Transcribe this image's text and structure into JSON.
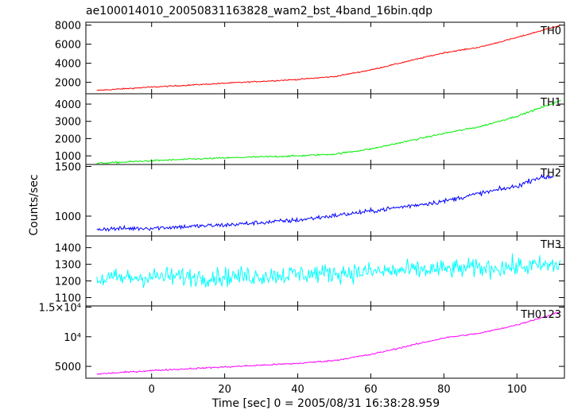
{
  "chart_data": {
    "type": "line",
    "title": "ae100014010_20050831163828_wam2_bst_4band_16bin.qdp",
    "xlabel": "Time [sec] 0 = 2005/08/31 16:38:28.959",
    "ylabel": "Counts/sec",
    "xlim": [
      -18,
      113
    ],
    "x_ticks": [
      0,
      20,
      40,
      60,
      80,
      100
    ],
    "x_tick_labels": [
      "0",
      "20",
      "40",
      "60",
      "80",
      "100"
    ],
    "x_step": 0.25,
    "series": [
      {
        "name": "TH0",
        "color": "#ff0000",
        "ylim": [
          800,
          8300
        ],
        "y_ticks": [
          2000,
          4000,
          6000,
          8000
        ],
        "y_tick_labels": [
          "2000",
          "4000",
          "6000",
          "8000"
        ],
        "control_points": [
          [
            -15,
            1150
          ],
          [
            0,
            1500
          ],
          [
            20,
            1900
          ],
          [
            40,
            2300
          ],
          [
            50,
            2600
          ],
          [
            60,
            3300
          ],
          [
            70,
            4200
          ],
          [
            80,
            5100
          ],
          [
            90,
            5700
          ],
          [
            100,
            6700
          ],
          [
            112,
            8000
          ]
        ],
        "noise": 60
      },
      {
        "name": "TH1",
        "color": "#00ee00",
        "ylim": [
          500,
          4600
        ],
        "y_ticks": [
          1000,
          2000,
          3000,
          4000
        ],
        "y_tick_labels": [
          "1000",
          "2000",
          "3000",
          "4000"
        ],
        "control_points": [
          [
            -15,
            560
          ],
          [
            0,
            720
          ],
          [
            20,
            880
          ],
          [
            40,
            1000
          ],
          [
            50,
            1100
          ],
          [
            60,
            1400
          ],
          [
            70,
            1850
          ],
          [
            80,
            2300
          ],
          [
            90,
            2700
          ],
          [
            100,
            3300
          ],
          [
            112,
            4200
          ]
        ],
        "noise": 45
      },
      {
        "name": "TH2",
        "color": "#0000ff",
        "ylim": [
          800,
          1520
        ],
        "y_ticks": [
          1000,
          1500
        ],
        "y_tick_labels": [
          "1000",
          "1500"
        ],
        "control_points": [
          [
            -15,
            870
          ],
          [
            0,
            880
          ],
          [
            20,
            910
          ],
          [
            40,
            960
          ],
          [
            60,
            1050
          ],
          [
            70,
            1100
          ],
          [
            80,
            1150
          ],
          [
            90,
            1230
          ],
          [
            100,
            1300
          ],
          [
            105,
            1380
          ],
          [
            110,
            1400
          ]
        ],
        "noise": 22
      },
      {
        "name": "TH3",
        "color": "#00ffff",
        "ylim": [
          1050,
          1470
        ],
        "y_ticks": [
          1100,
          1200,
          1300,
          1400
        ],
        "y_tick_labels": [
          "1100",
          "1200",
          "1300",
          "1400"
        ],
        "control_points": [
          [
            -15,
            1210
          ],
          [
            0,
            1225
          ],
          [
            20,
            1225
          ],
          [
            40,
            1240
          ],
          [
            60,
            1255
          ],
          [
            80,
            1270
          ],
          [
            100,
            1285
          ],
          [
            112,
            1295
          ]
        ],
        "noise": 55
      },
      {
        "name": "TH0123",
        "color": "#ff00ff",
        "ylim": [
          3000,
          15200
        ],
        "y_ticks": [
          5000,
          10000,
          15000
        ],
        "y_tick_labels": [
          "5000",
          "10⁴",
          "1.5×10⁴"
        ],
        "control_points": [
          [
            -15,
            3700
          ],
          [
            0,
            4300
          ],
          [
            20,
            4900
          ],
          [
            40,
            5500
          ],
          [
            50,
            6000
          ],
          [
            60,
            7000
          ],
          [
            70,
            8400
          ],
          [
            80,
            9800
          ],
          [
            90,
            10600
          ],
          [
            100,
            12000
          ],
          [
            112,
            14200
          ]
        ],
        "noise": 120
      }
    ]
  }
}
